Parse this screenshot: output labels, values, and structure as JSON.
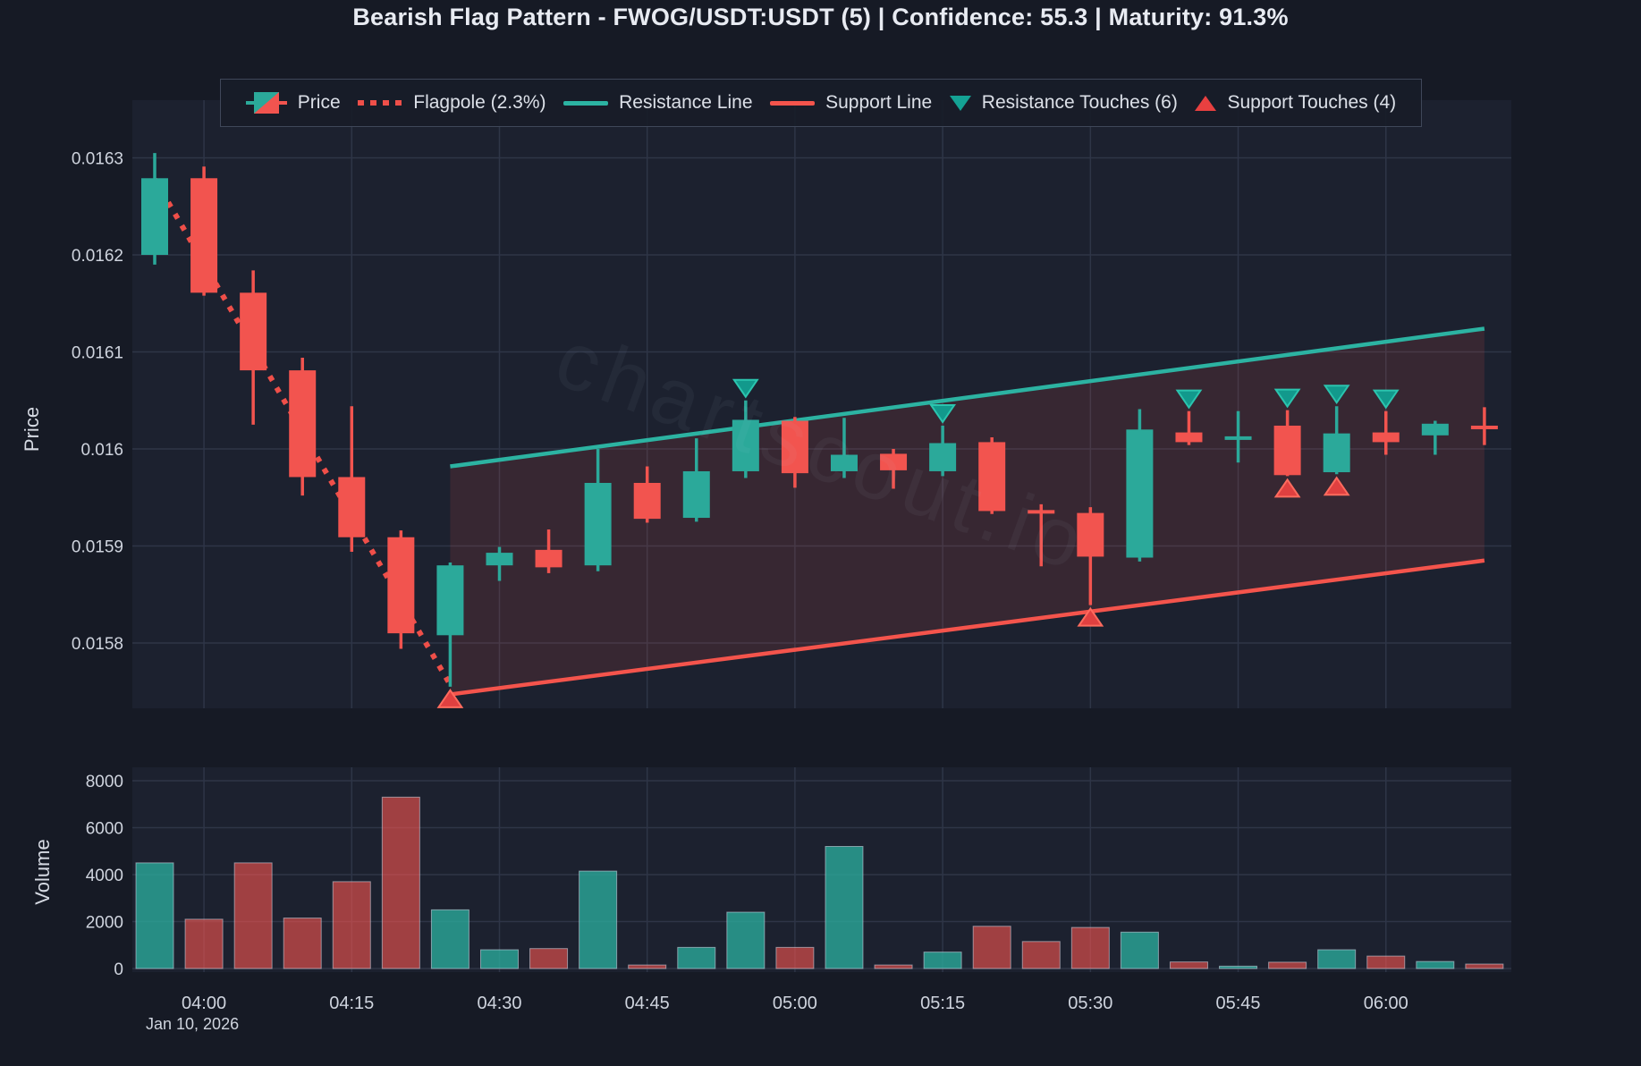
{
  "title": "Bearish Flag Pattern - FWOG/USDT:USDT (5) | Confidence: 55.3 | Maturity: 91.3%",
  "watermark": "chartscout.io",
  "axes": {
    "price_label": "Price",
    "volume_label": "Volume",
    "date_label": "Jan 10, 2026"
  },
  "legend": [
    {
      "icon": "candle",
      "label": "Price"
    },
    {
      "icon": "dotted",
      "label": "Flagpole (2.3%)"
    },
    {
      "icon": "line-teal",
      "label": "Resistance Line"
    },
    {
      "icon": "line-red",
      "label": "Support Line"
    },
    {
      "icon": "tri-down",
      "label": "Resistance Touches (6)"
    },
    {
      "icon": "tri-up",
      "label": "Support Touches (4)"
    }
  ],
  "colors": {
    "up": "#2ba99a",
    "down": "#f2544f",
    "resistance": "#2cb3a2",
    "support": "#f4544c",
    "flagpole": "#ef4f49",
    "flag_fill": "rgba(242,84,79,0.13)",
    "marker_res_fill": "#12998c",
    "marker_res_stroke": "#2bc4ae",
    "marker_sup_fill": "#e04040",
    "marker_sup_stroke": "#ff6b5e",
    "grid": "#2e3547",
    "tick_text": "#cfd4de",
    "plot_bg": "#1c212f",
    "outer_bg": "#161a25",
    "vol_bar_border": "rgba(214,220,233,0.55)"
  },
  "chart_data": {
    "type": "candlestick+volume",
    "symbol": "FWOG/USDT:USDT",
    "interval_minutes": 5,
    "date": "Jan 10, 2026",
    "price_axis_ticks": [
      {
        "label": "0.0163",
        "value": 0.0163
      },
      {
        "label": "0.0162",
        "value": 0.0162
      },
      {
        "label": "0.0161",
        "value": 0.0161
      },
      {
        "label": "0.016",
        "value": 0.016
      },
      {
        "label": "0.0159",
        "value": 0.0159
      },
      {
        "label": "0.0158",
        "value": 0.0158
      }
    ],
    "volume_axis_ticks": [
      {
        "label": "8000",
        "value": 8000
      },
      {
        "label": "6000",
        "value": 6000
      },
      {
        "label": "4000",
        "value": 4000
      },
      {
        "label": "2000",
        "value": 2000
      },
      {
        "label": "0",
        "value": 0
      }
    ],
    "x_ticks": [
      {
        "index": 1,
        "label": "04:00"
      },
      {
        "index": 4,
        "label": "04:15"
      },
      {
        "index": 7,
        "label": "04:30"
      },
      {
        "index": 10,
        "label": "04:45"
      },
      {
        "index": 13,
        "label": "05:00"
      },
      {
        "index": 16,
        "label": "05:15"
      },
      {
        "index": 19,
        "label": "05:30"
      },
      {
        "index": 22,
        "label": "05:45"
      },
      {
        "index": 25,
        "label": "06:00"
      }
    ],
    "candle_columns": [
      "time",
      "open",
      "high",
      "low",
      "close",
      "volume"
    ],
    "candles": [
      [
        "03:55",
        0.0162,
        0.016305,
        0.01619,
        0.016279,
        4500
      ],
      [
        "04:00",
        0.016279,
        0.016291,
        0.016158,
        0.016161,
        2100
      ],
      [
        "04:05",
        0.016161,
        0.016184,
        0.016025,
        0.016081,
        4500
      ],
      [
        "04:10",
        0.016081,
        0.016094,
        0.015952,
        0.015971,
        2150
      ],
      [
        "04:15",
        0.015971,
        0.016044,
        0.015894,
        0.015909,
        3700
      ],
      [
        "04:20",
        0.015909,
        0.015916,
        0.015794,
        0.01581,
        7300
      ],
      [
        "04:25",
        0.015808,
        0.015883,
        0.015755,
        0.01588,
        2500
      ],
      [
        "04:30",
        0.01588,
        0.015899,
        0.015864,
        0.015893,
        800
      ],
      [
        "04:35",
        0.015896,
        0.015917,
        0.015872,
        0.015878,
        850
      ],
      [
        "04:40",
        0.01588,
        0.016,
        0.015874,
        0.015965,
        4150
      ],
      [
        "04:45",
        0.015965,
        0.015982,
        0.015924,
        0.015928,
        150
      ],
      [
        "04:50",
        0.015929,
        0.016011,
        0.015925,
        0.015977,
        900
      ],
      [
        "04:55",
        0.015977,
        0.01605,
        0.01597,
        0.01603,
        2400
      ],
      [
        "05:00",
        0.016029,
        0.016033,
        0.01596,
        0.015975,
        900
      ],
      [
        "05:05",
        0.015977,
        0.016032,
        0.01597,
        0.015994,
        5200
      ],
      [
        "05:10",
        0.015995,
        0.016,
        0.015959,
        0.015978,
        150
      ],
      [
        "05:15",
        0.015977,
        0.016024,
        0.015972,
        0.016006,
        700
      ],
      [
        "05:20",
        0.016007,
        0.016012,
        0.015933,
        0.015936,
        1800
      ],
      [
        "05:25",
        0.015937,
        0.015943,
        0.015879,
        0.015935,
        1150
      ],
      [
        "05:30",
        0.015934,
        0.01594,
        0.015839,
        0.015889,
        1750
      ],
      [
        "05:35",
        0.015888,
        0.016041,
        0.015884,
        0.01602,
        1550
      ],
      [
        "05:40",
        0.016017,
        0.016039,
        0.016004,
        0.016007,
        280
      ],
      [
        "05:45",
        0.01601,
        0.016039,
        0.015986,
        0.016013,
        100
      ],
      [
        "05:50",
        0.016024,
        0.01604,
        0.015972,
        0.015973,
        270
      ],
      [
        "05:55",
        0.015976,
        0.016044,
        0.015974,
        0.016016,
        800
      ],
      [
        "06:00",
        0.016017,
        0.016039,
        0.015994,
        0.016007,
        530
      ],
      [
        "06:05",
        0.016014,
        0.016029,
        0.015994,
        0.016026,
        300
      ],
      [
        "06:10",
        0.016024,
        0.016043,
        0.016004,
        0.016022,
        190
      ]
    ],
    "flagpole": {
      "start_index": 0,
      "start_price": 0.016278,
      "end_index": 6,
      "end_price": 0.015757,
      "change_pct": "2.3%"
    },
    "flag": {
      "start_index": 6,
      "end_index": 27,
      "resistance_start_price": 0.015982,
      "resistance_end_price": 0.016124,
      "support_start_price": 0.015747,
      "support_end_price": 0.015885
    },
    "resistance_touch_indices": [
      12,
      16,
      21,
      23,
      24,
      25
    ],
    "support_touch_indices": [
      6,
      19,
      23,
      24
    ],
    "resistance_touch_count": 6,
    "support_touch_count": 4,
    "confidence": 55.3,
    "maturity_pct": 91.3
  }
}
